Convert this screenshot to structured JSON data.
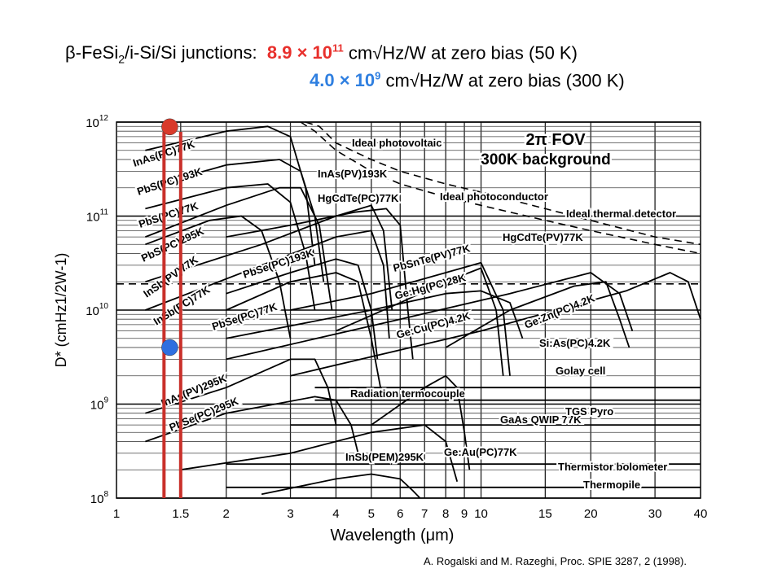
{
  "header": {
    "line1": {
      "prefix_a": "β-FeSi",
      "prefix_sub": "2",
      "prefix_b": "/i-Si/Si junctions:",
      "value_mant": "8.9 × 10",
      "value_exp": "11",
      "suffix": "cm√Hz/W at zero bias (50 K)"
    },
    "line2": {
      "value_mant": "4.0 × 10",
      "value_exp": "9",
      "suffix": "cm√Hz/W at zero bias (300 K)"
    }
  },
  "citation": "A. Rogalski and M. Razeghi, Proc. SPIE 3287, 2 (1998).",
  "chart_data": {
    "type": "line",
    "x_scale": "log",
    "y_scale": "log",
    "xlim": [
      1,
      40
    ],
    "ylim": [
      100000000.0,
      1000000000000.0
    ],
    "xlabel": "Wavelength (μm)",
    "ylabel": "D* (cmHz1/2W-1)",
    "x_ticks": [
      1,
      1.5,
      2,
      3,
      4,
      5,
      6,
      7,
      8,
      9,
      10,
      15,
      20,
      30,
      40
    ],
    "x_tick_labels": [
      "1",
      "1.5",
      "2",
      "3",
      "4",
      "5",
      "6",
      "7",
      "8",
      "9",
      "10",
      "15",
      "20",
      "30",
      "40"
    ],
    "y_ticks": [
      100000000.0,
      1000000000.0,
      10000000000.0,
      100000000000.0,
      1000000000000.0
    ],
    "y_tick_labels": [
      {
        "base": "10",
        "exp": "8"
      },
      {
        "base": "10",
        "exp": "9"
      },
      {
        "base": "10",
        "exp": "10"
      },
      {
        "base": "10",
        "exp": "11"
      },
      {
        "base": "10",
        "exp": "12"
      }
    ],
    "annotation_box": [
      "2π FOV",
      "300K background"
    ],
    "highlight": {
      "band_x": [
        1.35,
        1.5
      ],
      "points": [
        {
          "x": 1.4,
          "y": 890000000000.0,
          "color": "#d93a2b"
        },
        {
          "x": 1.4,
          "y": 4000000000.0,
          "color": "#2f6fe0"
        }
      ]
    },
    "series": [
      {
        "name": "InAs(PC)77K",
        "dashed": false,
        "points": [
          [
            1.2,
            500000000000.0
          ],
          [
            2.0,
            800000000000.0
          ],
          [
            2.6,
            900000000000.0
          ],
          [
            3.0,
            700000000000.0
          ],
          [
            3.3,
            200000000000.0
          ],
          [
            3.5,
            30000000000.0
          ]
        ]
      },
      {
        "name": "PbS(PC)193K",
        "dashed": false,
        "points": [
          [
            1.2,
            200000000000.0
          ],
          [
            2.0,
            350000000000.0
          ],
          [
            2.8,
            400000000000.0
          ],
          [
            3.2,
            300000000000.0
          ],
          [
            3.5,
            100000000000.0
          ],
          [
            3.7,
            20000000000.0
          ]
        ]
      },
      {
        "name": "PbS(PC)77K",
        "dashed": false,
        "points": [
          [
            1.2,
            120000000000.0
          ],
          [
            2.0,
            200000000000.0
          ],
          [
            2.6,
            220000000000.0
          ],
          [
            3.0,
            140000000000.0
          ],
          [
            3.3,
            40000000000.0
          ],
          [
            3.5,
            10000000000.0
          ]
        ]
      },
      {
        "name": "PbS(PC)295K",
        "dashed": false,
        "points": [
          [
            1.2,
            50000000000.0
          ],
          [
            1.8,
            90000000000.0
          ],
          [
            2.2,
            100000000000.0
          ],
          [
            2.5,
            70000000000.0
          ],
          [
            2.8,
            20000000000.0
          ],
          [
            3.0,
            5000000000.0
          ]
        ]
      },
      {
        "name": "InSb(PV)77K",
        "dashed": false,
        "points": [
          [
            1.2,
            20000000000.0
          ],
          [
            2.5,
            50000000000.0
          ],
          [
            4.0,
            100000000000.0
          ],
          [
            5.0,
            130000000000.0
          ],
          [
            5.4,
            70000000000.0
          ],
          [
            5.7,
            10000000000.0
          ]
        ]
      },
      {
        "name": "InSb(PC)77K",
        "dashed": false,
        "points": [
          [
            1.2,
            10000000000.0
          ],
          [
            2.5,
            30000000000.0
          ],
          [
            4.0,
            60000000000.0
          ],
          [
            5.0,
            70000000000.0
          ],
          [
            5.4,
            30000000000.0
          ],
          [
            5.6,
            5000000000.0
          ]
        ]
      },
      {
        "name": "PbSe(PC)193K",
        "dashed": false,
        "points": [
          [
            2.0,
            15000000000.0
          ],
          [
            3.0,
            25000000000.0
          ],
          [
            4.0,
            35000000000.0
          ],
          [
            4.6,
            30000000000.0
          ],
          [
            5.0,
            10000000000.0
          ],
          [
            5.2,
            3000000000.0
          ]
        ]
      },
      {
        "name": "PbSe(PC)77K",
        "dashed": false,
        "points": [
          [
            2.0,
            10000000000.0
          ],
          [
            3.0,
            20000000000.0
          ],
          [
            4.0,
            25000000000.0
          ],
          [
            4.6,
            20000000000.0
          ],
          [
            5.0,
            5000000000.0
          ],
          [
            5.3,
            1500000000.0
          ]
        ]
      },
      {
        "name": "HgCdTe(PC)77K",
        "dashed": false,
        "points": [
          [
            2.0,
            60000000000.0
          ],
          [
            3.0,
            80000000000.0
          ],
          [
            4.5,
            110000000000.0
          ],
          [
            5.5,
            120000000000.0
          ],
          [
            6.0,
            80000000000.0
          ],
          [
            6.3,
            10000000000.0
          ],
          [
            6.5,
            3000000000.0
          ]
        ]
      },
      {
        "name": "InAs(PV)193K",
        "dashed": false,
        "points": [
          [
            1.2,
            60000000000.0
          ],
          [
            2.0,
            130000000000.0
          ],
          [
            2.8,
            200000000000.0
          ],
          [
            3.2,
            200000000000.0
          ],
          [
            3.6,
            80000000000.0
          ],
          [
            3.9,
            10000000000.0
          ]
        ]
      },
      {
        "name": "PbSnTe(PV)77K",
        "dashed": false,
        "points": [
          [
            4.0,
            6000000000.0
          ],
          [
            6.0,
            12000000000.0
          ],
          [
            8.0,
            20000000000.0
          ],
          [
            10.0,
            28000000000.0
          ],
          [
            11.0,
            10000000000.0
          ],
          [
            11.5,
            2000000000.0
          ]
        ]
      },
      {
        "name": "HgCdTe(PV)77K",
        "dashed": false,
        "points": [
          [
            3.0,
            10000000000.0
          ],
          [
            5.0,
            15000000000.0
          ],
          [
            8.0,
            25000000000.0
          ],
          [
            10.0,
            32000000000.0
          ],
          [
            11.5,
            10000000000.0
          ],
          [
            12.0,
            2000000000.0
          ]
        ]
      },
      {
        "name": "Ge:Hg(PC)28K",
        "dashed": false,
        "points": [
          [
            2.0,
            5000000000.0
          ],
          [
            5.0,
            10000000000.0
          ],
          [
            8.0,
            15000000000.0
          ],
          [
            10.0,
            16000000000.0
          ],
          [
            12.0,
            12000000000.0
          ],
          [
            13.0,
            5000000000.0
          ]
        ]
      },
      {
        "name": "Ge:Cu(PC)4.2K",
        "dashed": false,
        "points": [
          [
            2.0,
            3000000000.0
          ],
          [
            6.0,
            8000000000.0
          ],
          [
            12.0,
            15000000000.0
          ],
          [
            20.0,
            25000000000.0
          ],
          [
            24.0,
            15000000000.0
          ],
          [
            26.0,
            6000000000.0
          ]
        ]
      },
      {
        "name": "Ge:Zn(PC)4.2K",
        "dashed": false,
        "points": [
          [
            3.0,
            2000000000.0
          ],
          [
            10.0,
            6000000000.0
          ],
          [
            25.0,
            16000000000.0
          ],
          [
            33.0,
            25000000000.0
          ],
          [
            37.0,
            20000000000.0
          ],
          [
            40.0,
            8000000000.0
          ]
        ]
      },
      {
        "name": "Si:As(PC)4.2K",
        "dashed": false,
        "points": [
          [
            8.0,
            4000000000.0
          ],
          [
            12.0,
            10000000000.0
          ],
          [
            18.0,
            18000000000.0
          ],
          [
            22.0,
            20000000000.0
          ],
          [
            24.0,
            8000000000.0
          ],
          [
            25.5,
            4000000000.0
          ]
        ]
      },
      {
        "name": "InAs(PV)295K",
        "dashed": false,
        "points": [
          [
            1.2,
            800000000.0
          ],
          [
            2.0,
            1500000000.0
          ],
          [
            3.0,
            3000000000.0
          ],
          [
            3.5,
            3000000000.0
          ],
          [
            3.8,
            1500000000.0
          ],
          [
            4.0,
            600000000.0
          ]
        ]
      },
      {
        "name": "PbSe(PC)295K",
        "dashed": false,
        "points": [
          [
            1.2,
            400000000.0
          ],
          [
            2.0,
            800000000.0
          ],
          [
            3.5,
            1200000000.0
          ],
          [
            4.0,
            1100000000.0
          ],
          [
            4.4,
            600000000.0
          ],
          [
            4.6,
            300000000.0
          ]
        ]
      },
      {
        "name": "GaAs QWIP 77K",
        "dashed": false,
        "points": [
          [
            5.0,
            600000000.0
          ],
          [
            7.0,
            1500000000.0
          ],
          [
            8.0,
            2000000000.0
          ],
          [
            8.6,
            1500000000.0
          ],
          [
            9.0,
            500000000.0
          ],
          [
            9.3,
            200000000.0
          ]
        ]
      },
      {
        "name": "Ge:Au(PC)77K",
        "dashed": false,
        "points": [
          [
            1.5,
            200000000.0
          ],
          [
            3.0,
            300000000.0
          ],
          [
            5.0,
            500000000.0
          ],
          [
            7.0,
            600000000.0
          ],
          [
            8.0,
            400000000.0
          ],
          [
            8.6,
            150000000.0
          ]
        ]
      },
      {
        "name": "InSb(PEM)295K",
        "dashed": false,
        "points": [
          [
            2.5,
            110000000.0
          ],
          [
            4.0,
            160000000.0
          ],
          [
            5.0,
            180000000.0
          ],
          [
            6.0,
            160000000.0
          ],
          [
            6.5,
            120000000.0
          ],
          [
            6.8,
            100000000.0
          ]
        ]
      },
      {
        "name": "Golay cell",
        "dashed": false,
        "points": [
          [
            3.5,
            1500000000.0
          ],
          [
            40.0,
            1500000000.0
          ]
        ]
      },
      {
        "name": "Radiation termocouple",
        "dashed": false,
        "points": [
          [
            3.5,
            1100000000.0
          ],
          [
            40.0,
            1100000000.0
          ]
        ]
      },
      {
        "name": "TGS Pyro",
        "dashed": false,
        "points": [
          [
            3.0,
            600000000.0
          ],
          [
            40.0,
            600000000.0
          ]
        ]
      },
      {
        "name": "Thermistor bolometer",
        "dashed": false,
        "points": [
          [
            2.0,
            230000000.0
          ],
          [
            40.0,
            230000000.0
          ]
        ]
      },
      {
        "name": "Thermopile",
        "dashed": false,
        "points": [
          [
            2.0,
            130000000.0
          ],
          [
            40.0,
            130000000.0
          ]
        ]
      },
      {
        "name": "Ideal photovoltaic",
        "dashed": true,
        "points": [
          [
            3.3,
            1000000000000.0
          ],
          [
            3.6,
            900000000000.0
          ],
          [
            4.0,
            600000000000.0
          ],
          [
            5.0,
            400000000000.0
          ],
          [
            6.0,
            300000000000.0
          ],
          [
            8.0,
            220000000000.0
          ],
          [
            10.0,
            180000000000.0
          ],
          [
            15.0,
            120000000000.0
          ],
          [
            20.0,
            90000000000.0
          ],
          [
            30.0,
            60000000000.0
          ],
          [
            40.0,
            50000000000.0
          ]
        ]
      },
      {
        "name": "Ideal photoconductor",
        "dashed": true,
        "points": [
          [
            3.2,
            1000000000000.0
          ],
          [
            3.5,
            800000000000.0
          ],
          [
            4.0,
            500000000000.0
          ],
          [
            5.0,
            300000000000.0
          ],
          [
            6.0,
            220000000000.0
          ],
          [
            8.0,
            160000000000.0
          ],
          [
            10.0,
            130000000000.0
          ],
          [
            15.0,
            90000000000.0
          ],
          [
            20.0,
            70000000000.0
          ],
          [
            30.0,
            50000000000.0
          ],
          [
            40.0,
            40000000000.0
          ]
        ]
      },
      {
        "name": "Ideal thermal detector",
        "dashed": true,
        "points": [
          [
            1.0,
            19000000000.0
          ],
          [
            40.0,
            19000000000.0
          ]
        ]
      }
    ],
    "label_map": {
      "InAs(PC)77K": "InAs(PC)77K",
      "PbS(PC)193K": "PbS(PC)193K",
      "PbS(PC)77K": "PbS(PC)77K",
      "PbS(PC)295K": "PbS(PC)295K",
      "InSb(PV)77K": "InSb(PV)77K",
      "InSb(PC)77K": "InSb(PC)77K",
      "PbSe(PC)193K": "PbSe(PC)193K",
      "PbSe(PC)77K": "PbSe(PC)77K",
      "HgCdTe(PC)77K": "HgCdTe(PC)77K",
      "InAs(PV)193K": "InAs(PV)193K",
      "PbSnTe(PV)77K": "PbSnTe(PV)77K",
      "HgCdTe(PV)77K": "HgCdTe(PV)77K",
      "Ge:Hg(PC)28K": "Ge:Hg(PC)28K",
      "Ge:Cu(PC)4.2K": "Ge:Cu(PC)4.2K",
      "Ge:Zn(PC)4.2K": "Ge:Zn(PC)4.2K",
      "Si:As(PC)4.2K": "Si:As(PC)4.2K",
      "InAs(PV)295K": "InAs(PV)295K",
      "PbSe(PC)295K": "PbSe(PC)295K",
      "GaAs QWIP 77K": "GaAs QWIP 77K",
      "Ge:Au(PC)77K": "Ge:Au(PC)77K",
      "InSb(PEM)295K": "InSb(PEM)295K",
      "Golay cell": "Golay cell",
      "Radiation termocouple": "Radiation termocouple",
      "TGS Pyro": "TGS Pyro",
      "Thermistor bolometer": "Thermistor bolometer",
      "Thermopile": "Thermopile",
      "Ideal photovoltaic": "Ideal photovoltaic",
      "Ideal photoconductor": "Ideal photoconductor",
      "Ideal thermal detector": "Ideal thermal detector"
    }
  }
}
